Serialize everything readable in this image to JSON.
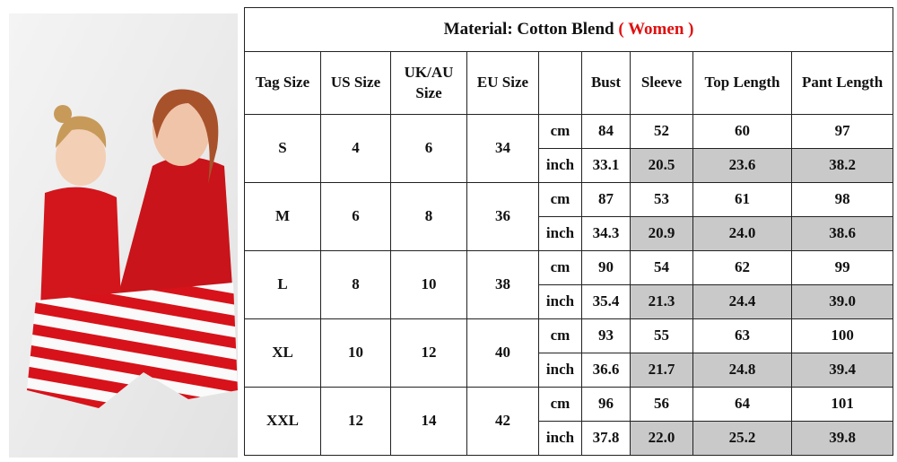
{
  "title": {
    "text": "Material: Cotton Blend",
    "highlight": "( Women )"
  },
  "headers": [
    "Tag Size",
    "US Size",
    "UK/AU Size",
    "EU Size",
    "Bust",
    "Sleeve",
    "Top Length",
    "Pant Length"
  ],
  "units": [
    "cm",
    "inch"
  ],
  "rows": [
    {
      "tag": "S",
      "us": "4",
      "uk": "6",
      "eu": "34",
      "cm": [
        "84",
        "52",
        "60",
        "97"
      ],
      "inch": [
        "33.1",
        "20.5",
        "23.6",
        "38.2"
      ]
    },
    {
      "tag": "M",
      "us": "6",
      "uk": "8",
      "eu": "36",
      "cm": [
        "87",
        "53",
        "61",
        "98"
      ],
      "inch": [
        "34.3",
        "20.9",
        "24.0",
        "38.6"
      ]
    },
    {
      "tag": "L",
      "us": "8",
      "uk": "10",
      "eu": "38",
      "cm": [
        "90",
        "54",
        "62",
        "99"
      ],
      "inch": [
        "35.4",
        "21.3",
        "24.4",
        "39.0"
      ]
    },
    {
      "tag": "XL",
      "us": "10",
      "uk": "12",
      "eu": "40",
      "cm": [
        "93",
        "55",
        "63",
        "100"
      ],
      "inch": [
        "36.6",
        "21.7",
        "24.8",
        "39.4"
      ]
    },
    {
      "tag": "XXL",
      "us": "12",
      "uk": "14",
      "eu": "42",
      "cm": [
        "96",
        "56",
        "64",
        "101"
      ],
      "inch": [
        "37.8",
        "22.0",
        "25.2",
        "39.8"
      ]
    }
  ]
}
